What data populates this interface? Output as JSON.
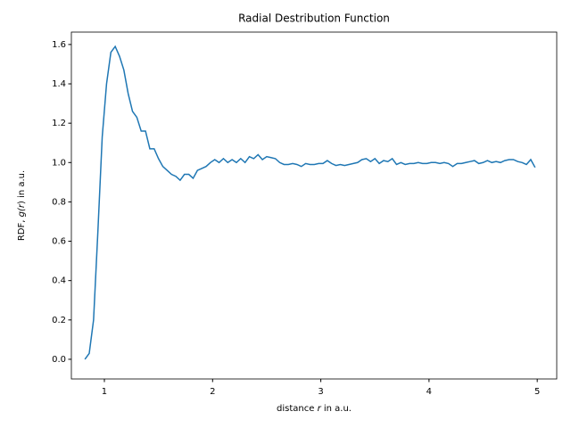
{
  "chart_data": {
    "type": "line",
    "title": "Radial Destribution Function",
    "xlabel": [
      "distance ",
      "r",
      " in a.u."
    ],
    "ylabel": [
      "RDF, ",
      "g",
      "(",
      "r",
      ") in a.u."
    ],
    "x": [
      0.82,
      0.86,
      0.9,
      0.94,
      0.98,
      1.02,
      1.06,
      1.1,
      1.14,
      1.18,
      1.22,
      1.26,
      1.3,
      1.34,
      1.38,
      1.42,
      1.46,
      1.5,
      1.54,
      1.58,
      1.62,
      1.66,
      1.7,
      1.74,
      1.78,
      1.82,
      1.86,
      1.9,
      1.94,
      1.98,
      2.02,
      2.06,
      2.1,
      2.14,
      2.18,
      2.22,
      2.26,
      2.3,
      2.34,
      2.38,
      2.42,
      2.46,
      2.5,
      2.54,
      2.58,
      2.62,
      2.66,
      2.7,
      2.74,
      2.78,
      2.82,
      2.86,
      2.9,
      2.94,
      2.98,
      3.02,
      3.06,
      3.1,
      3.14,
      3.18,
      3.22,
      3.26,
      3.3,
      3.34,
      3.38,
      3.42,
      3.46,
      3.5,
      3.54,
      3.58,
      3.62,
      3.66,
      3.7,
      3.74,
      3.78,
      3.82,
      3.86,
      3.9,
      3.94,
      3.98,
      4.02,
      4.06,
      4.1,
      4.14,
      4.18,
      4.22,
      4.26,
      4.3,
      4.34,
      4.38,
      4.42,
      4.46,
      4.5,
      4.54,
      4.58,
      4.62,
      4.66,
      4.7,
      4.74,
      4.78,
      4.82,
      4.86,
      4.9,
      4.94,
      4.98
    ],
    "series": [
      {
        "name": "g(r)",
        "color": "#1f77b4",
        "values": [
          0.0,
          0.03,
          0.2,
          0.65,
          1.13,
          1.4,
          1.56,
          1.59,
          1.54,
          1.47,
          1.35,
          1.26,
          1.23,
          1.16,
          1.16,
          1.07,
          1.07,
          1.02,
          0.98,
          0.96,
          0.94,
          0.93,
          0.91,
          0.94,
          0.94,
          0.92,
          0.96,
          0.97,
          0.98,
          1.0,
          1.015,
          1.0,
          1.02,
          1.0,
          1.015,
          1.0,
          1.02,
          1.0,
          1.03,
          1.02,
          1.04,
          1.015,
          1.03,
          1.025,
          1.02,
          1.0,
          0.99,
          0.99,
          0.995,
          0.99,
          0.98,
          0.995,
          0.99,
          0.99,
          0.995,
          0.995,
          1.01,
          0.995,
          0.985,
          0.99,
          0.985,
          0.99,
          0.995,
          1.0,
          1.015,
          1.02,
          1.005,
          1.02,
          0.995,
          1.01,
          1.005,
          1.02,
          0.99,
          1.0,
          0.99,
          0.995,
          0.995,
          1.0,
          0.995,
          0.995,
          1.0,
          1.0,
          0.995,
          1.0,
          0.995,
          0.98,
          0.995,
          0.995,
          1.0,
          1.005,
          1.01,
          0.995,
          1.0,
          1.01,
          1.0,
          1.005,
          1.0,
          1.01,
          1.015,
          1.015,
          1.005,
          1.0,
          0.99,
          1.015,
          0.975
        ]
      }
    ],
    "xlim": [
      0.695,
      5.18
    ],
    "xticks": [
      1,
      2,
      3,
      4,
      5
    ],
    "ylim": [
      -0.1,
      1.663
    ],
    "yticks": [
      {
        "value": 0,
        "label": "0.0"
      },
      0.2,
      0.4,
      0.6,
      0.8,
      {
        "value": 1,
        "label": "1.0"
      },
      1.2,
      1.4,
      1.6
    ]
  }
}
